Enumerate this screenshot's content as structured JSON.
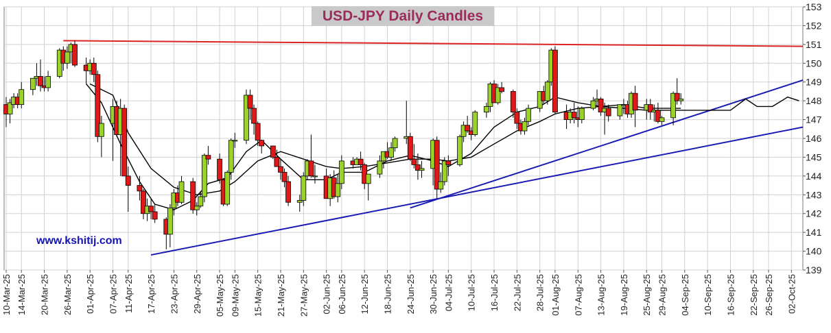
{
  "chart_data": {
    "type": "candlestick",
    "title": "USD-JPY Daily Candles",
    "watermark": "www.kshitij.com",
    "y_axis": {
      "side": "right",
      "min": 139,
      "max": 153,
      "ticks": [
        139,
        140,
        141,
        142,
        143,
        144,
        145,
        146,
        147,
        148,
        149,
        150,
        151,
        152,
        153
      ]
    },
    "x_axis": {
      "date_range": [
        "2025-03-10",
        "2025-10-05"
      ]
    },
    "x_tick_labels": [
      "10-Mar-25",
      "14-Mar-25",
      "20-Mar-25",
      "26-Mar-25",
      "01-Apr-25",
      "07-Apr-25",
      "11-Apr-25",
      "17-Apr-25",
      "23-Apr-25",
      "29-Apr-25",
      "05-May-25",
      "09-May-25",
      "15-May-25",
      "21-May-25",
      "27-May-25",
      "02-Jun-25",
      "06-Jun-25",
      "12-Jun-25",
      "18-Jun-25",
      "24-Jun-25",
      "30-Jun-25",
      "04-Jul-25",
      "10-Jul-25",
      "16-Jul-25",
      "22-Jul-25",
      "28-Jul-25",
      "01-Aug-25",
      "07-Aug-25",
      "13-Aug-25",
      "19-Aug-25",
      "25-Aug-25",
      "29-Aug-25",
      "04-Sep-25",
      "10-Sep-25",
      "16-Sep-25",
      "22-Sep-25",
      "26-Sep-25",
      "02-Oct-25"
    ],
    "grid": true,
    "colors": {
      "up": "#9bd22a",
      "down": "#e01818",
      "ma": "#000000",
      "resistance": "#dd2222",
      "support": "#1a1ab4",
      "title_text": "#9b2b5a",
      "title_bg": "#c9c9c9",
      "watermark": "#1414b4"
    },
    "candles": [
      [
        "2025-03-10",
        147.8,
        148.2,
        146.6,
        147.3
      ],
      [
        "2025-03-11",
        147.3,
        148.1,
        146.8,
        147.9
      ],
      [
        "2025-03-12",
        147.8,
        148.4,
        147.6,
        148.2
      ],
      [
        "2025-03-13",
        148.2,
        148.4,
        147.6,
        147.8
      ],
      [
        "2025-03-14",
        147.8,
        149.0,
        147.6,
        148.6
      ],
      [
        "2025-03-17",
        148.6,
        149.2,
        148.3,
        149.2
      ],
      [
        "2025-03-18",
        149.2,
        150.0,
        148.8,
        149.3
      ],
      [
        "2025-03-19",
        149.3,
        150.2,
        148.5,
        148.8
      ],
      [
        "2025-03-20",
        148.8,
        149.3,
        148.5,
        148.7
      ],
      [
        "2025-03-21",
        148.7,
        149.6,
        148.5,
        149.3
      ],
      [
        "2025-03-24",
        149.3,
        150.8,
        149.2,
        150.7
      ],
      [
        "2025-03-25",
        150.7,
        150.9,
        149.6,
        150.0
      ],
      [
        "2025-03-26",
        150.0,
        150.9,
        149.7,
        150.6
      ],
      [
        "2025-03-27",
        150.6,
        151.1,
        150.0,
        151.0
      ],
      [
        "2025-03-28",
        151.0,
        151.2,
        149.8,
        149.9
      ],
      [
        "2025-03-31",
        149.9,
        150.3,
        148.9,
        149.6
      ],
      [
        "2025-04-01",
        149.6,
        150.2,
        149.4,
        150.0
      ],
      [
        "2025-04-02",
        150.0,
        150.3,
        149.0,
        149.4
      ],
      [
        "2025-04-03",
        149.4,
        149.6,
        145.8,
        146.1
      ],
      [
        "2025-04-04",
        146.1,
        147.2,
        145.0,
        146.8
      ],
      [
        "2025-04-07",
        146.8,
        148.1,
        144.8,
        147.7
      ],
      [
        "2025-04-08",
        147.7,
        148.0,
        146.1,
        146.2
      ],
      [
        "2025-04-09",
        146.2,
        148.1,
        144.0,
        147.6
      ],
      [
        "2025-04-10",
        147.6,
        147.8,
        144.0,
        144.0
      ],
      [
        "2025-04-11",
        144.0,
        144.5,
        142.1,
        143.5
      ],
      [
        "2025-04-14",
        143.5,
        144.0,
        142.7,
        143.2
      ],
      [
        "2025-04-15",
        143.2,
        143.3,
        141.7,
        142.0
      ],
      [
        "2025-04-16",
        142.0,
        142.8,
        141.6,
        142.4
      ],
      [
        "2025-04-17",
        142.4,
        142.8,
        141.7,
        142.1
      ],
      [
        "2025-04-18",
        142.1,
        142.5,
        141.5,
        141.7
      ],
      [
        "2025-04-21",
        141.7,
        141.8,
        140.1,
        140.9
      ],
      [
        "2025-04-22",
        140.9,
        142.5,
        140.2,
        142.3
      ],
      [
        "2025-04-23",
        142.3,
        143.3,
        141.9,
        143.1
      ],
      [
        "2025-04-24",
        143.1,
        143.5,
        142.4,
        142.6
      ],
      [
        "2025-04-25",
        142.6,
        144.0,
        142.5,
        143.7
      ],
      [
        "2025-04-28",
        143.7,
        143.9,
        142.0,
        142.2
      ],
      [
        "2025-04-29",
        142.2,
        142.6,
        141.9,
        142.4
      ],
      [
        "2025-04-30",
        142.4,
        143.2,
        142.3,
        142.9
      ],
      [
        "2025-05-01",
        142.9,
        145.2,
        142.6,
        145.1
      ],
      [
        "2025-05-02",
        145.1,
        145.6,
        144.6,
        144.9
      ],
      [
        "2025-05-05",
        144.9,
        145.2,
        143.6,
        143.8
      ],
      [
        "2025-05-06",
        143.8,
        143.9,
        142.4,
        142.5
      ],
      [
        "2025-05-07",
        142.5,
        144.3,
        142.4,
        144.2
      ],
      [
        "2025-05-08",
        144.2,
        146.0,
        143.8,
        145.9
      ],
      [
        "2025-05-09",
        145.9,
        146.3,
        145.5,
        145.9
      ],
      [
        "2025-05-12",
        145.9,
        148.6,
        145.7,
        148.3
      ],
      [
        "2025-05-13",
        148.3,
        148.6,
        147.0,
        147.6
      ],
      [
        "2025-05-14",
        147.6,
        147.8,
        146.2,
        146.8
      ],
      [
        "2025-05-15",
        146.8,
        146.9,
        145.6,
        145.9
      ],
      [
        "2025-05-16",
        145.9,
        145.9,
        145.2,
        145.6
      ],
      [
        "2025-05-19",
        145.6,
        145.6,
        144.9,
        145.0
      ],
      [
        "2025-05-20",
        145.0,
        145.4,
        144.5,
        144.5
      ],
      [
        "2025-05-21",
        144.5,
        144.9,
        143.8,
        144.2
      ],
      [
        "2025-05-22",
        144.2,
        144.4,
        143.4,
        143.7
      ],
      [
        "2025-05-23",
        143.7,
        144.0,
        142.4,
        142.6
      ],
      [
        "2025-05-26",
        142.6,
        143.0,
        142.1,
        142.7
      ],
      [
        "2025-05-27",
        142.7,
        144.2,
        142.4,
        144.0
      ],
      [
        "2025-05-28",
        144.0,
        144.9,
        143.8,
        144.8
      ],
      [
        "2025-05-29",
        144.8,
        146.2,
        143.9,
        144.0
      ],
      [
        "2025-05-30",
        144.0,
        144.6,
        143.6,
        144.0
      ],
      [
        "2025-06-02",
        144.0,
        144.4,
        142.8,
        142.8
      ],
      [
        "2025-06-03",
        142.8,
        144.1,
        142.4,
        143.9
      ],
      [
        "2025-06-04",
        143.9,
        144.3,
        142.8,
        142.9
      ],
      [
        "2025-06-05",
        142.9,
        144.1,
        142.6,
        143.6
      ],
      [
        "2025-06-06",
        143.6,
        145.1,
        143.3,
        144.8
      ],
      [
        "2025-06-09",
        144.8,
        145.0,
        144.4,
        144.6
      ],
      [
        "2025-06-10",
        144.6,
        145.0,
        144.6,
        144.9
      ],
      [
        "2025-06-11",
        144.9,
        145.3,
        144.3,
        144.6
      ],
      [
        "2025-06-12",
        144.6,
        144.7,
        143.3,
        143.6
      ],
      [
        "2025-06-13",
        143.6,
        144.1,
        142.7,
        144.1
      ],
      [
        "2025-06-16",
        144.1,
        145.1,
        143.9,
        144.8
      ],
      [
        "2025-06-17",
        144.8,
        145.3,
        144.4,
        145.3
      ],
      [
        "2025-06-18",
        145.3,
        145.8,
        144.9,
        145.0
      ],
      [
        "2025-06-19",
        145.0,
        145.8,
        144.8,
        145.5
      ],
      [
        "2025-06-20",
        145.5,
        146.1,
        145.3,
        146.0
      ],
      [
        "2025-06-23",
        146.0,
        148.0,
        145.7,
        146.1
      ],
      [
        "2025-06-24",
        146.1,
        146.3,
        144.8,
        144.9
      ],
      [
        "2025-06-25",
        144.9,
        145.7,
        144.4,
        144.6
      ],
      [
        "2025-06-26",
        144.6,
        145.2,
        143.8,
        144.3
      ],
      [
        "2025-06-27",
        144.3,
        144.8,
        143.9,
        144.4
      ],
      [
        "2025-06-30",
        144.4,
        146.0,
        143.5,
        145.9
      ],
      [
        "2025-07-01",
        145.9,
        146.1,
        142.8,
        143.3
      ],
      [
        "2025-07-02",
        143.3,
        144.2,
        143.1,
        143.7
      ],
      [
        "2025-07-03",
        143.7,
        145.0,
        143.5,
        144.8
      ],
      [
        "2025-07-04",
        144.8,
        145.1,
        144.0,
        144.6
      ],
      [
        "2025-07-07",
        144.6,
        146.2,
        144.5,
        146.1
      ],
      [
        "2025-07-08",
        146.1,
        146.9,
        145.8,
        146.7
      ],
      [
        "2025-07-09",
        146.7,
        147.2,
        146.3,
        146.4
      ],
      [
        "2025-07-10",
        146.4,
        146.6,
        145.9,
        146.2
      ],
      [
        "2025-07-11",
        146.2,
        147.5,
        146.1,
        147.4
      ],
      [
        "2025-07-14",
        147.4,
        147.9,
        147.1,
        147.7
      ],
      [
        "2025-07-15",
        147.7,
        149.0,
        147.4,
        148.9
      ],
      [
        "2025-07-16",
        148.9,
        149.1,
        147.9,
        147.9
      ],
      [
        "2025-07-17",
        147.9,
        148.9,
        147.8,
        148.7
      ],
      [
        "2025-07-18",
        148.7,
        149.0,
        148.4,
        148.5
      ],
      [
        "2025-07-21",
        148.5,
        148.6,
        147.1,
        147.4
      ],
      [
        "2025-07-22",
        147.4,
        147.6,
        146.5,
        146.8
      ],
      [
        "2025-07-23",
        146.8,
        147.0,
        146.2,
        146.4
      ],
      [
        "2025-07-24",
        146.4,
        147.1,
        146.2,
        146.9
      ],
      [
        "2025-07-25",
        146.9,
        147.8,
        146.7,
        147.6
      ],
      [
        "2025-07-28",
        147.6,
        148.5,
        147.4,
        148.5
      ],
      [
        "2025-07-29",
        148.5,
        148.8,
        147.8,
        148.0
      ],
      [
        "2025-07-30",
        148.0,
        149.1,
        147.8,
        149.0
      ],
      [
        "2025-07-31",
        149.0,
        150.8,
        148.8,
        150.7
      ],
      [
        "2025-08-01",
        150.7,
        150.9,
        147.3,
        147.4
      ],
      [
        "2025-08-04",
        147.4,
        147.8,
        146.5,
        147.0
      ],
      [
        "2025-08-05",
        147.0,
        147.6,
        146.8,
        147.4
      ],
      [
        "2025-08-06",
        147.4,
        147.9,
        146.8,
        147.1
      ],
      [
        "2025-08-07",
        147.1,
        147.7,
        146.6,
        147.0
      ],
      [
        "2025-08-08",
        147.0,
        147.7,
        146.8,
        147.6
      ],
      [
        "2025-08-11",
        147.6,
        148.2,
        147.5,
        148.0
      ],
      [
        "2025-08-12",
        148.0,
        148.6,
        147.7,
        148.1
      ],
      [
        "2025-08-13",
        148.1,
        148.2,
        147.2,
        147.4
      ],
      [
        "2025-08-14",
        147.4,
        147.9,
        146.2,
        147.6
      ],
      [
        "2025-08-15",
        147.6,
        147.8,
        146.9,
        147.2
      ],
      [
        "2025-08-18",
        147.2,
        147.8,
        147.0,
        147.8
      ],
      [
        "2025-08-19",
        147.8,
        148.1,
        147.3,
        147.8
      ],
      [
        "2025-08-20",
        147.8,
        148.0,
        147.1,
        147.3
      ],
      [
        "2025-08-21",
        147.3,
        148.5,
        147.1,
        148.4
      ],
      [
        "2025-08-22",
        148.4,
        148.8,
        146.6,
        147.5
      ],
      [
        "2025-08-25",
        147.5,
        148.1,
        147.0,
        147.8
      ],
      [
        "2025-08-26",
        147.8,
        148.1,
        147.0,
        147.4
      ],
      [
        "2025-08-27",
        147.4,
        147.8,
        146.9,
        147.5
      ],
      [
        "2025-08-28",
        147.5,
        147.9,
        146.8,
        146.9
      ],
      [
        "2025-08-29",
        146.9,
        147.2,
        146.7,
        147.1
      ],
      [
        "2025-09-01",
        147.1,
        148.5,
        146.7,
        148.4
      ],
      [
        "2025-09-02",
        148.4,
        149.2,
        147.8,
        148.0
      ],
      [
        "2025-09-03",
        148.0,
        148.4,
        147.8,
        148.1
      ]
    ],
    "moving_averages": [
      {
        "points": [
          [
            "2025-03-31",
            148.9
          ],
          [
            "2025-04-04",
            147.9
          ],
          [
            "2025-04-09",
            145.7
          ],
          [
            "2025-04-14",
            143.7
          ],
          [
            "2025-04-18",
            142.5
          ],
          [
            "2025-04-23",
            142.2
          ],
          [
            "2025-04-28",
            142.7
          ],
          [
            "2025-05-02",
            143.6
          ],
          [
            "2025-05-07",
            143.9
          ],
          [
            "2025-05-12",
            145.3
          ],
          [
            "2025-05-16",
            145.9
          ],
          [
            "2025-05-21",
            144.9
          ],
          [
            "2025-05-27",
            143.8
          ],
          [
            "2025-06-02",
            143.8
          ],
          [
            "2025-06-06",
            144.2
          ],
          [
            "2025-06-12",
            144.2
          ],
          [
            "2025-06-18",
            144.8
          ],
          [
            "2025-06-24",
            145.1
          ],
          [
            "2025-06-30",
            144.8
          ],
          [
            "2025-07-04",
            144.5
          ],
          [
            "2025-07-10",
            145.2
          ],
          [
            "2025-07-16",
            146.6
          ],
          [
            "2025-07-22",
            147.4
          ],
          [
            "2025-07-28",
            147.7
          ],
          [
            "2025-08-01",
            148.2
          ],
          [
            "2025-08-07",
            147.9
          ],
          [
            "2025-08-13",
            147.7
          ],
          [
            "2025-08-19",
            147.8
          ],
          [
            "2025-08-25",
            147.6
          ],
          [
            "2025-09-03",
            147.6
          ]
        ]
      },
      {
        "points": [
          [
            "2025-04-01",
            148.9
          ],
          [
            "2025-04-07",
            148.3
          ],
          [
            "2025-04-11",
            146.3
          ],
          [
            "2025-04-17",
            144.4
          ],
          [
            "2025-04-23",
            143.4
          ],
          [
            "2025-04-29",
            143.0
          ],
          [
            "2025-05-05",
            143.2
          ],
          [
            "2025-05-09",
            143.7
          ],
          [
            "2025-05-15",
            144.8
          ],
          [
            "2025-05-21",
            145.3
          ],
          [
            "2025-05-27",
            144.9
          ],
          [
            "2025-06-02",
            144.5
          ],
          [
            "2025-06-06",
            144.4
          ],
          [
            "2025-06-12",
            144.5
          ],
          [
            "2025-06-18",
            144.7
          ],
          [
            "2025-06-24",
            144.9
          ],
          [
            "2025-06-30",
            144.9
          ],
          [
            "2025-07-04",
            144.8
          ],
          [
            "2025-07-10",
            145.0
          ],
          [
            "2025-07-16",
            145.7
          ],
          [
            "2025-07-22",
            146.4
          ],
          [
            "2025-07-28",
            146.9
          ],
          [
            "2025-08-01",
            147.3
          ],
          [
            "2025-08-07",
            147.6
          ],
          [
            "2025-08-13",
            147.7
          ],
          [
            "2025-08-19",
            147.6
          ],
          [
            "2025-08-25",
            147.5
          ],
          [
            "2025-09-03",
            147.5
          ]
        ]
      },
      {
        "points": [
          [
            "2025-09-03",
            147.5
          ],
          [
            "2025-09-10",
            147.5
          ],
          [
            "2025-09-16",
            147.5
          ],
          [
            "2025-09-20",
            148.1
          ],
          [
            "2025-09-23",
            147.7
          ],
          [
            "2025-09-27",
            147.7
          ],
          [
            "2025-10-01",
            148.2
          ],
          [
            "2025-10-04",
            148.0
          ]
        ]
      }
    ],
    "trendlines": [
      {
        "name": "resistance",
        "from": [
          "2025-03-25",
          151.2
        ],
        "to": [
          "2025-10-05",
          150.9
        ]
      },
      {
        "name": "support-1",
        "from": [
          "2025-04-17",
          139.8
        ],
        "to": [
          "2025-10-05",
          146.6
        ]
      },
      {
        "name": "support-2",
        "from": [
          "2025-06-24",
          142.3
        ],
        "to": [
          "2025-10-05",
          149.1
        ]
      }
    ]
  }
}
